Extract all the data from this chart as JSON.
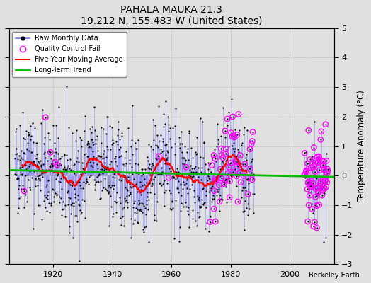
{
  "title": "PAHALA MAUKA 21.3",
  "subtitle": "19.212 N, 155.483 W (United States)",
  "ylabel": "Temperature Anomaly (°C)",
  "credit": "Berkeley Earth",
  "xlim": [
    1905,
    2015
  ],
  "ylim": [
    -3,
    5
  ],
  "yticks": [
    -3,
    -2,
    -1,
    0,
    1,
    2,
    3,
    4,
    5
  ],
  "xticks": [
    1920,
    1940,
    1960,
    1980,
    2000
  ],
  "background_color": "#e0e0e0",
  "plot_bg_color": "#e0e0e0",
  "raw_line_color": "#7777ff",
  "raw_dot_color": "#000000",
  "qc_fail_color": "#ff00ff",
  "moving_avg_color": "#ff0000",
  "trend_color": "#00bb00",
  "seed": 42,
  "start_year": 1907.0
}
